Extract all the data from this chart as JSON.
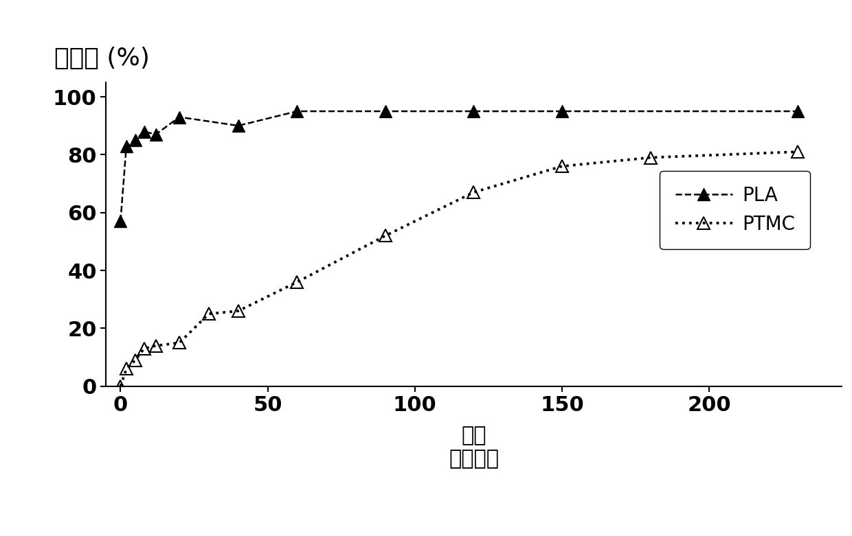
{
  "PLA_x": [
    0,
    2,
    5,
    8,
    12,
    20,
    40,
    60,
    90,
    120,
    150,
    230
  ],
  "PLA_y": [
    57,
    83,
    85,
    88,
    87,
    93,
    90,
    95,
    95,
    95,
    95,
    95
  ],
  "PTMC_x": [
    0,
    2,
    5,
    8,
    12,
    20,
    30,
    40,
    60,
    90,
    120,
    150,
    180,
    230
  ],
  "PTMC_y": [
    0,
    6,
    9,
    13,
    14,
    15,
    25,
    26,
    36,
    52,
    67,
    76,
    79,
    81
  ],
  "xlabel_line1": "时间",
  "xlabel_line2": "（分钟）",
  "ylabel": "转化率 (%)",
  "xlim": [
    -5,
    245
  ],
  "ylim": [
    0,
    105
  ],
  "xticks": [
    0,
    50,
    100,
    150,
    200
  ],
  "yticks": [
    0,
    20,
    40,
    60,
    80,
    100
  ],
  "PLA_label": "PLA",
  "PTMC_label": "PTMC",
  "line_color": "#000000",
  "bg_color": "#ffffff",
  "marker_size": 13,
  "linewidth": 1.8
}
